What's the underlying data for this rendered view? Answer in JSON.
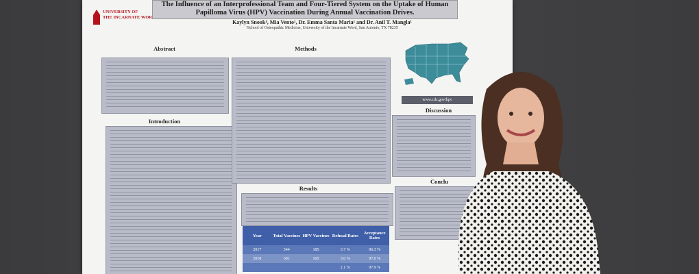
{
  "poster": {
    "title_line1": "The Influence of an Interprofessional Team and Four-Tiered System on the Uptake of Human",
    "title_line2": "Papilloma Virus (HPV) Vaccination During Annual Vaccination Drives.",
    "authors": "Kaylyn Snook¹, Mia Vento¹, Dr. Emma Santa Maria¹ and Dr. Anil T. Mangla¹",
    "affiliation": "¹School of Osteopathic Medicine, University of the Incarnate Word, San Antonio, TX 78235",
    "logo_line1": "UNIVERSITY OF",
    "logo_line2": "THE INCARNATE WORD",
    "sections": {
      "abstract": "Abstract",
      "methods": "Methods",
      "introduction": "Introduction",
      "results": "Results",
      "discussion": "Discussion",
      "conclusion": "Conclu"
    },
    "cdc_label": "www.cdc.gov/hpv",
    "table": {
      "headers": [
        "Year",
        "Total Vaccines",
        "HPV Vaccines",
        "Refusal Rates",
        "Acceptance Rates"
      ],
      "rows": [
        [
          "2017",
          "544",
          "185",
          "3.7 %",
          "96.3 %"
        ],
        [
          "2018",
          "591",
          "165",
          "3.0 %",
          "97.0 %"
        ],
        [
          "",
          "",
          "",
          "2.1 %",
          "97.9 %"
        ]
      ]
    }
  },
  "colors": {
    "wall": "#3b3b3d",
    "poster": "#f4f4f2",
    "text_box": "#b9bcc8",
    "table_header": "#3f5fa8",
    "uiw_red": "#b5121b",
    "map_blue": "#3c8c9a"
  }
}
